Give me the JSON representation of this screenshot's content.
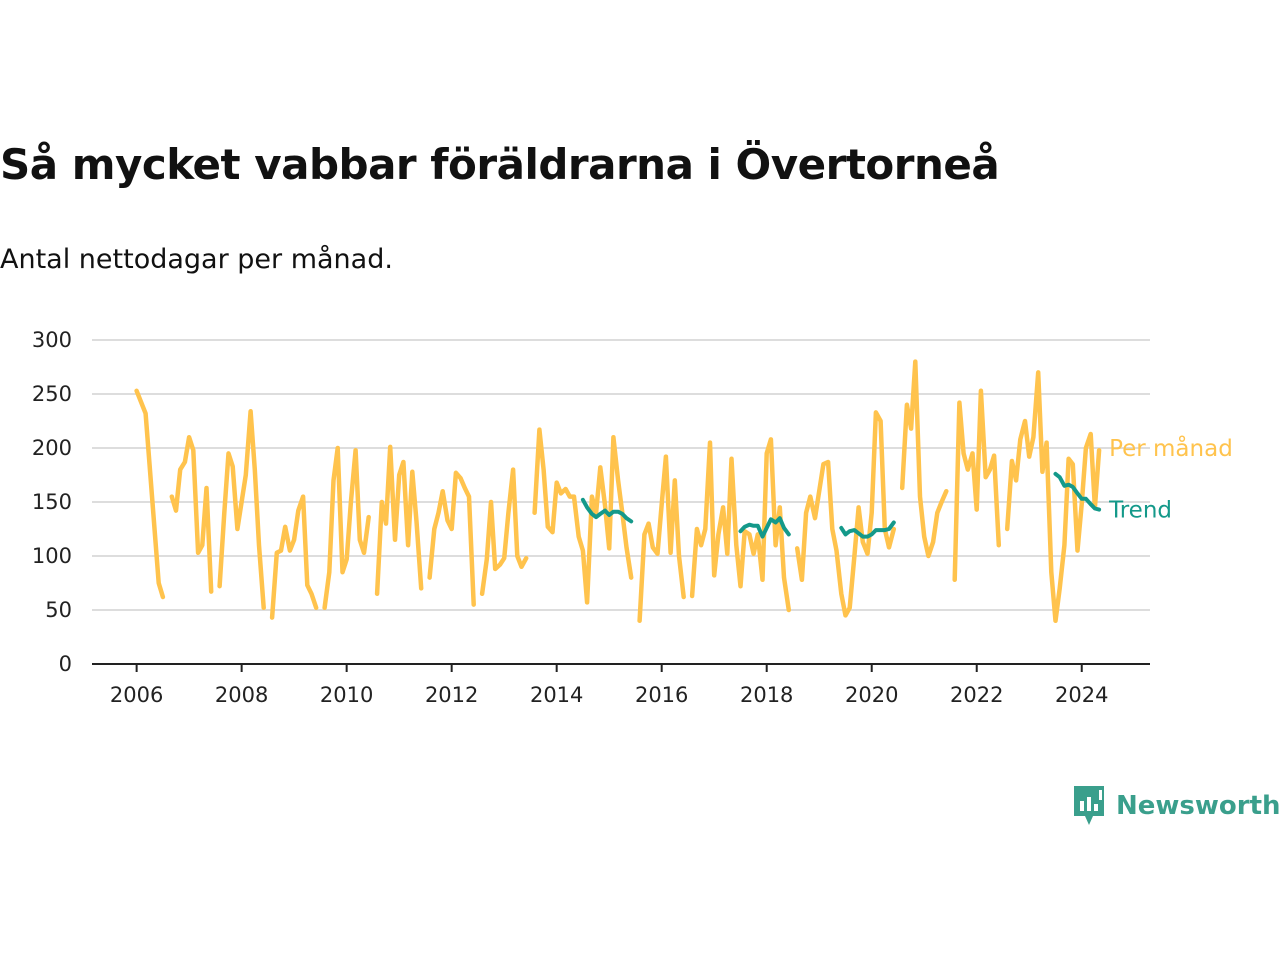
{
  "title": "Så mycket vabbar föräldrarna i Övertorneå",
  "subtitle": "Antal nettodagar per månad.",
  "brand": {
    "name": "Newsworthy",
    "icon": "newsworthy-logo-icon",
    "color": "#3a9f8c"
  },
  "colors": {
    "monthly": "#ffc34d",
    "trend": "#14998a",
    "grid": "#dddddd",
    "axis": "#222222"
  },
  "chart_data": {
    "type": "line",
    "x_unit": "decimal year",
    "xlim": [
      2005.15,
      2025.3
    ],
    "ylim": [
      0,
      300
    ],
    "y_ticks": [
      0,
      50,
      100,
      150,
      200,
      250,
      300
    ],
    "x_ticks": [
      2006,
      2008,
      2010,
      2012,
      2014,
      2016,
      2018,
      2020,
      2022,
      2024
    ],
    "grid": true,
    "legend": "inline labels at right end of lines",
    "series": [
      {
        "name": "Per månad",
        "color": "#ffc34d",
        "segments": [
          [
            [
              2006.0,
              253
            ],
            [
              2006.17,
              232
            ],
            [
              2006.42,
              75
            ],
            [
              2006.5,
              62
            ]
          ],
          [
            [
              2006.67,
              155
            ],
            [
              2006.75,
              142
            ],
            [
              2006.83,
              180
            ],
            [
              2006.92,
              187
            ],
            [
              2007.0,
              210
            ],
            [
              2007.08,
              198
            ],
            [
              2007.17,
              103
            ],
            [
              2007.25,
              110
            ],
            [
              2007.33,
              163
            ],
            [
              2007.42,
              67
            ]
          ],
          [
            [
              2007.58,
              72
            ],
            [
              2007.67,
              140
            ],
            [
              2007.75,
              195
            ],
            [
              2007.83,
              183
            ],
            [
              2007.92,
              125
            ],
            [
              2008.0,
              150
            ],
            [
              2008.08,
              175
            ],
            [
              2008.17,
              234
            ],
            [
              2008.25,
              180
            ],
            [
              2008.33,
              110
            ],
            [
              2008.42,
              52
            ]
          ],
          [
            [
              2008.58,
              43
            ],
            [
              2008.67,
              103
            ],
            [
              2008.75,
              105
            ],
            [
              2008.83,
              127
            ],
            [
              2008.92,
              105
            ],
            [
              2009.0,
              115
            ],
            [
              2009.08,
              142
            ],
            [
              2009.17,
              155
            ],
            [
              2009.25,
              73
            ],
            [
              2009.33,
              65
            ],
            [
              2009.42,
              52
            ]
          ],
          [
            [
              2009.58,
              52
            ],
            [
              2009.67,
              85
            ],
            [
              2009.75,
              170
            ],
            [
              2009.83,
              200
            ],
            [
              2009.92,
              85
            ],
            [
              2010.0,
              97
            ],
            [
              2010.08,
              150
            ],
            [
              2010.17,
              198
            ],
            [
              2010.25,
              115
            ],
            [
              2010.33,
              103
            ],
            [
              2010.42,
              136
            ]
          ],
          [
            [
              2010.58,
              65
            ],
            [
              2010.67,
              150
            ],
            [
              2010.75,
              130
            ],
            [
              2010.83,
              201
            ],
            [
              2010.92,
              115
            ],
            [
              2011.0,
              175
            ],
            [
              2011.08,
              187
            ],
            [
              2011.17,
              110
            ],
            [
              2011.25,
              178
            ],
            [
              2011.33,
              132
            ],
            [
              2011.42,
              70
            ]
          ],
          [
            [
              2011.58,
              80
            ],
            [
              2011.67,
              125
            ],
            [
              2011.75,
              140
            ],
            [
              2011.83,
              160
            ],
            [
              2011.92,
              133
            ],
            [
              2012.0,
              125
            ],
            [
              2012.08,
              177
            ],
            [
              2012.17,
              172
            ],
            [
              2012.25,
              163
            ],
            [
              2012.33,
              155
            ],
            [
              2012.42,
              55
            ]
          ],
          [
            [
              2012.58,
              65
            ],
            [
              2012.67,
              97
            ],
            [
              2012.75,
              150
            ],
            [
              2012.83,
              88
            ],
            [
              2012.92,
              92
            ],
            [
              2013.0,
              98
            ],
            [
              2013.08,
              140
            ],
            [
              2013.17,
              180
            ],
            [
              2013.25,
              100
            ],
            [
              2013.33,
              90
            ],
            [
              2013.42,
              98
            ]
          ],
          [
            [
              2013.58,
              140
            ],
            [
              2013.67,
              217
            ],
            [
              2013.75,
              180
            ],
            [
              2013.83,
              127
            ],
            [
              2013.92,
              122
            ],
            [
              2014.0,
              168
            ],
            [
              2014.08,
              158
            ],
            [
              2014.17,
              162
            ],
            [
              2014.25,
              155
            ],
            [
              2014.33,
              155
            ],
            [
              2014.42,
              118
            ],
            [
              2014.5,
              105
            ],
            [
              2014.58,
              57
            ],
            [
              2014.67,
              155
            ],
            [
              2014.75,
              140
            ],
            [
              2014.83,
              182
            ],
            [
              2014.92,
              147
            ],
            [
              2015.0,
              107
            ],
            [
              2015.08,
              210
            ],
            [
              2015.17,
              170
            ],
            [
              2015.25,
              140
            ],
            [
              2015.33,
              108
            ],
            [
              2015.42,
              80
            ]
          ],
          [
            [
              2015.58,
              40
            ],
            [
              2015.67,
              120
            ],
            [
              2015.75,
              130
            ],
            [
              2015.83,
              108
            ],
            [
              2015.92,
              102
            ],
            [
              2016.0,
              148
            ],
            [
              2016.08,
              192
            ],
            [
              2016.17,
              103
            ],
            [
              2016.25,
              170
            ],
            [
              2016.33,
              100
            ],
            [
              2016.42,
              62
            ]
          ],
          [
            [
              2016.58,
              63
            ],
            [
              2016.67,
              125
            ],
            [
              2016.75,
              110
            ],
            [
              2016.83,
              125
            ],
            [
              2016.92,
              205
            ],
            [
              2017.0,
              82
            ],
            [
              2017.08,
              120
            ],
            [
              2017.17,
              145
            ],
            [
              2017.25,
              102
            ],
            [
              2017.33,
              190
            ],
            [
              2017.42,
              110
            ],
            [
              2017.5,
              72
            ],
            [
              2017.58,
              123
            ],
            [
              2017.67,
              120
            ],
            [
              2017.75,
              102
            ],
            [
              2017.83,
              120
            ],
            [
              2017.92,
              78
            ],
            [
              2018.0,
              195
            ],
            [
              2018.08,
              208
            ],
            [
              2018.17,
              110
            ],
            [
              2018.25,
              145
            ],
            [
              2018.33,
              80
            ],
            [
              2018.42,
              50
            ]
          ],
          [
            [
              2018.58,
              107
            ],
            [
              2018.67,
              78
            ],
            [
              2018.75,
              140
            ],
            [
              2018.83,
              155
            ],
            [
              2018.92,
              135
            ],
            [
              2019.0,
              160
            ],
            [
              2019.08,
              185
            ],
            [
              2019.17,
              187
            ],
            [
              2019.25,
              125
            ],
            [
              2019.33,
              105
            ],
            [
              2019.42,
              65
            ],
            [
              2019.5,
              45
            ],
            [
              2019.58,
              52
            ],
            [
              2019.67,
              100
            ],
            [
              2019.75,
              145
            ],
            [
              2019.83,
              113
            ],
            [
              2019.92,
              102
            ],
            [
              2020.0,
              140
            ],
            [
              2020.08,
              233
            ],
            [
              2020.17,
              225
            ],
            [
              2020.25,
              125
            ],
            [
              2020.33,
              108
            ],
            [
              2020.42,
              125
            ]
          ],
          [
            [
              2020.58,
              163
            ],
            [
              2020.67,
              240
            ],
            [
              2020.75,
              218
            ],
            [
              2020.83,
              280
            ],
            [
              2020.92,
              155
            ],
            [
              2021.0,
              118
            ],
            [
              2021.08,
              100
            ],
            [
              2021.17,
              113
            ],
            [
              2021.25,
              140
            ],
            [
              2021.33,
              150
            ],
            [
              2021.42,
              160
            ]
          ],
          [
            [
              2021.58,
              78
            ],
            [
              2021.67,
              242
            ],
            [
              2021.75,
              195
            ],
            [
              2021.83,
              180
            ],
            [
              2021.92,
              195
            ],
            [
              2022.0,
              143
            ],
            [
              2022.08,
              253
            ],
            [
              2022.17,
              173
            ],
            [
              2022.25,
              180
            ],
            [
              2022.33,
              193
            ],
            [
              2022.42,
              110
            ]
          ],
          [
            [
              2022.58,
              125
            ],
            [
              2022.67,
              188
            ],
            [
              2022.75,
              170
            ],
            [
              2022.83,
              208
            ],
            [
              2022.92,
              225
            ],
            [
              2023.0,
              192
            ],
            [
              2023.08,
              210
            ],
            [
              2023.17,
              270
            ],
            [
              2023.25,
              178
            ],
            [
              2023.33,
              205
            ],
            [
              2023.42,
              85
            ],
            [
              2023.5,
              40
            ],
            [
              2023.58,
              70
            ],
            [
              2023.67,
              110
            ],
            [
              2023.75,
              190
            ],
            [
              2023.83,
              185
            ],
            [
              2023.92,
              105
            ],
            [
              2024.0,
              148
            ],
            [
              2024.08,
              200
            ],
            [
              2024.17,
              213
            ],
            [
              2024.25,
              145
            ],
            [
              2024.33,
              198
            ]
          ]
        ]
      },
      {
        "name": "Trend",
        "color": "#14998a",
        "segments": [
          [
            [
              2014.5,
              152
            ],
            [
              2014.58,
              145
            ],
            [
              2014.67,
              139
            ],
            [
              2014.75,
              136
            ],
            [
              2014.83,
              139
            ],
            [
              2014.92,
              142
            ],
            [
              2015.0,
              138
            ],
            [
              2015.08,
              141
            ],
            [
              2015.17,
              141
            ],
            [
              2015.25,
              139
            ],
            [
              2015.33,
              135
            ],
            [
              2015.42,
              132
            ]
          ],
          [
            [
              2017.5,
              123
            ],
            [
              2017.58,
              127
            ],
            [
              2017.67,
              129
            ],
            [
              2017.75,
              128
            ],
            [
              2017.83,
              128
            ],
            [
              2017.92,
              118
            ],
            [
              2018.0,
              126
            ],
            [
              2018.08,
              134
            ],
            [
              2018.17,
              131
            ],
            [
              2018.25,
              135
            ],
            [
              2018.33,
              126
            ],
            [
              2018.42,
              120
            ]
          ],
          [
            [
              2019.42,
              126
            ],
            [
              2019.5,
              120
            ],
            [
              2019.58,
              123
            ],
            [
              2019.67,
              124
            ],
            [
              2019.75,
              121
            ],
            [
              2019.83,
              118
            ],
            [
              2019.92,
              118
            ],
            [
              2020.0,
              120
            ],
            [
              2020.08,
              124
            ],
            [
              2020.17,
              124
            ],
            [
              2020.25,
              124
            ],
            [
              2020.33,
              125
            ],
            [
              2020.42,
              131
            ]
          ],
          [
            [
              2023.5,
              176
            ],
            [
              2023.58,
              173
            ],
            [
              2023.67,
              165
            ],
            [
              2023.75,
              166
            ],
            [
              2023.83,
              164
            ],
            [
              2023.92,
              158
            ],
            [
              2024.0,
              153
            ],
            [
              2024.08,
              153
            ],
            [
              2024.17,
              148
            ],
            [
              2024.25,
              144
            ],
            [
              2024.33,
              143
            ]
          ]
        ]
      }
    ]
  }
}
